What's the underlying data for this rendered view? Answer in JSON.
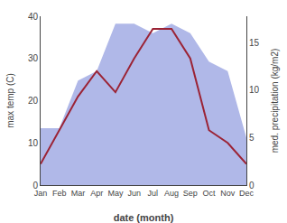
{
  "chart_data": {
    "type": "line",
    "xlabel": "date (month)",
    "ylabel": "max temp (C)",
    "y2label": "med. precipitation (kg/m2)",
    "categories": [
      "Jan",
      "Feb",
      "Mar",
      "Apr",
      "May",
      "Jun",
      "Jul",
      "Aug",
      "Sep",
      "Oct",
      "Nov",
      "Dec"
    ],
    "series": [
      {
        "type": "area",
        "color": "#b0b8e8",
        "axis": "y2",
        "values": [
          6,
          6,
          11,
          12,
          17,
          17,
          16,
          17,
          16,
          13,
          12,
          5
        ]
      },
      {
        "type": "line",
        "color": "#9b2335",
        "values": [
          5,
          13,
          21,
          27,
          22,
          30,
          37,
          37,
          30,
          13,
          10,
          5
        ]
      }
    ],
    "ylim": [
      0,
      40
    ],
    "yticks": [
      0,
      10,
      20,
      30,
      40
    ],
    "y2lim": [
      0,
      17.78
    ],
    "y2ticks": [
      0,
      5,
      10,
      15
    ],
    "grid": false
  }
}
